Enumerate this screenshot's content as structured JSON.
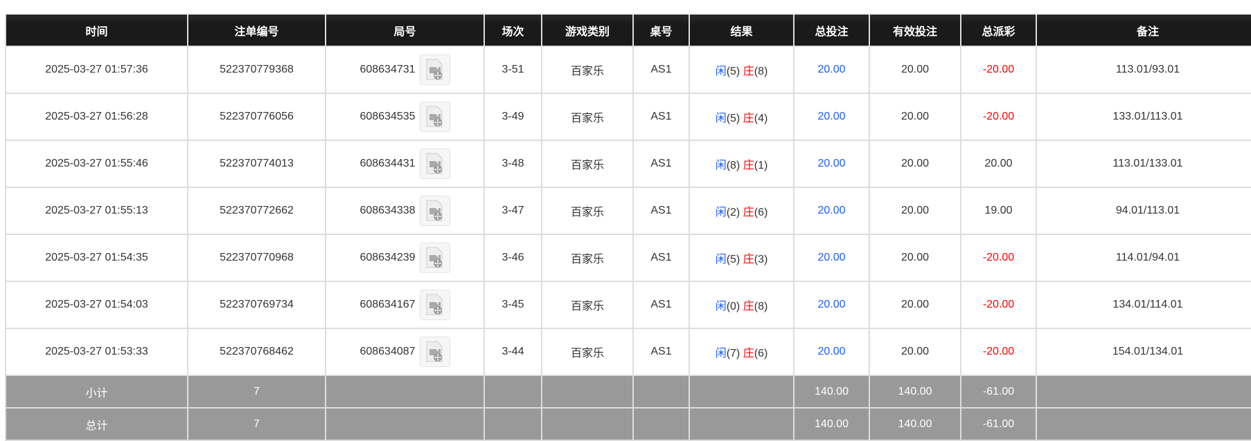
{
  "headers": [
    "时间",
    "注单编号",
    "局号",
    "场次",
    "游戏类别",
    "桌号",
    "结果",
    "总投注",
    "有效投注",
    "总派彩",
    "备注"
  ],
  "colors": {
    "player": "#1a5cff",
    "banker": "#ff0000",
    "negative": "#ff0000",
    "header_bg": "#1a1a1a",
    "summary_bg": "#999999"
  },
  "rows": [
    {
      "time": "2025-03-27 01:57:36",
      "bet_id": "522370779368",
      "round": "608634731",
      "shoe": "3-51",
      "game": "百家乐",
      "table": "AS1",
      "player_label": "闲",
      "player_score": "(5)",
      "banker_label": "庄",
      "banker_score": "(8)",
      "total_bet": "20.00",
      "valid_bet": "20.00",
      "payout": "-20.00",
      "payout_negative": true,
      "note": "113.01/93.01"
    },
    {
      "time": "2025-03-27 01:56:28",
      "bet_id": "522370776056",
      "round": "608634535",
      "shoe": "3-49",
      "game": "百家乐",
      "table": "AS1",
      "player_label": "闲",
      "player_score": "(5)",
      "banker_label": "庄",
      "banker_score": "(4)",
      "total_bet": "20.00",
      "valid_bet": "20.00",
      "payout": "-20.00",
      "payout_negative": true,
      "note": "133.01/113.01"
    },
    {
      "time": "2025-03-27 01:55:46",
      "bet_id": "522370774013",
      "round": "608634431",
      "shoe": "3-48",
      "game": "百家乐",
      "table": "AS1",
      "player_label": "闲",
      "player_score": "(8)",
      "banker_label": "庄",
      "banker_score": "(1)",
      "total_bet": "20.00",
      "valid_bet": "20.00",
      "payout": "20.00",
      "payout_negative": false,
      "note": "113.01/133.01"
    },
    {
      "time": "2025-03-27 01:55:13",
      "bet_id": "522370772662",
      "round": "608634338",
      "shoe": "3-47",
      "game": "百家乐",
      "table": "AS1",
      "player_label": "闲",
      "player_score": "(2)",
      "banker_label": "庄",
      "banker_score": "(6)",
      "total_bet": "20.00",
      "valid_bet": "20.00",
      "payout": "19.00",
      "payout_negative": false,
      "note": "94.01/113.01"
    },
    {
      "time": "2025-03-27 01:54:35",
      "bet_id": "522370770968",
      "round": "608634239",
      "shoe": "3-46",
      "game": "百家乐",
      "table": "AS1",
      "player_label": "闲",
      "player_score": "(5)",
      "banker_label": "庄",
      "banker_score": "(3)",
      "total_bet": "20.00",
      "valid_bet": "20.00",
      "payout": "-20.00",
      "payout_negative": true,
      "note": "114.01/94.01"
    },
    {
      "time": "2025-03-27 01:54:03",
      "bet_id": "522370769734",
      "round": "608634167",
      "shoe": "3-45",
      "game": "百家乐",
      "table": "AS1",
      "player_label": "闲",
      "player_score": "(0)",
      "banker_label": "庄",
      "banker_score": "(8)",
      "total_bet": "20.00",
      "valid_bet": "20.00",
      "payout": "-20.00",
      "payout_negative": true,
      "note": "134.01/114.01"
    },
    {
      "time": "2025-03-27 01:53:33",
      "bet_id": "522370768462",
      "round": "608634087",
      "shoe": "3-44",
      "game": "百家乐",
      "table": "AS1",
      "player_label": "闲",
      "player_score": "(7)",
      "banker_label": "庄",
      "banker_score": "(6)",
      "total_bet": "20.00",
      "valid_bet": "20.00",
      "payout": "-20.00",
      "payout_negative": true,
      "note": "154.01/134.01"
    }
  ],
  "subtotal": {
    "label": "小计",
    "count": "7",
    "total_bet": "140.00",
    "valid_bet": "140.00",
    "payout": "-61.00"
  },
  "total": {
    "label": "总计",
    "count": "7",
    "total_bet": "140.00",
    "valid_bet": "140.00",
    "payout": "-61.00"
  }
}
